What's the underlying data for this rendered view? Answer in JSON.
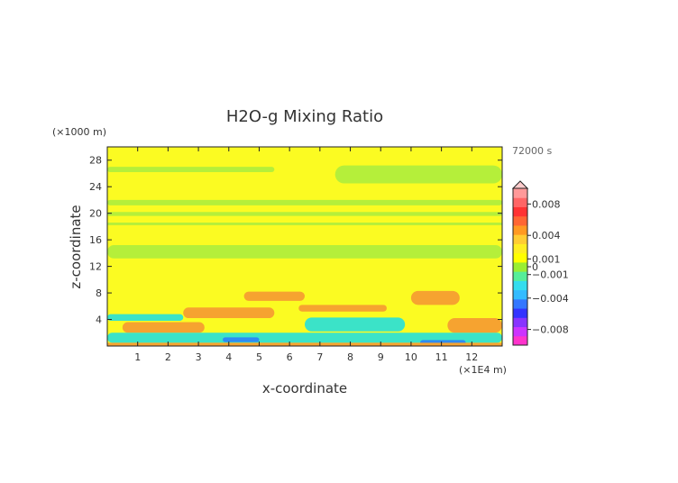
{
  "chart_data": {
    "type": "heatmap",
    "title": "H2O-g Mixing Ratio",
    "time_label": "72000 s",
    "xlabel": "x-coordinate",
    "ylabel": "z-coordinate",
    "x_unit": "(×1E4 m)",
    "y_unit": "(×1000 m)",
    "xlim": [
      0,
      13
    ],
    "ylim": [
      0,
      30
    ],
    "x_ticks": [
      "1",
      "2",
      "3",
      "4",
      "5",
      "6",
      "7",
      "8",
      "9",
      "10",
      "11",
      "12"
    ],
    "y_ticks": [
      "4",
      "8",
      "12",
      "16",
      "20",
      "24",
      "28"
    ],
    "colorbar": {
      "labels": [
        "0.008",
        "0.004",
        "0.001",
        "0",
        "−0.001",
        "−0.004",
        "−0.008"
      ],
      "label_values": [
        0.008,
        0.004,
        0.001,
        0,
        -0.001,
        -0.004,
        -0.008
      ],
      "range": [
        -0.01,
        0.01
      ],
      "colors": [
        "#ff33cc",
        "#cc33ff",
        "#8833ff",
        "#3333ff",
        "#3377ff",
        "#33bbff",
        "#33ddee",
        "#55ee99",
        "#99ee33",
        "#ffff00",
        "#ffee22",
        "#ffcc33",
        "#ff9922",
        "#ff6633",
        "#ff3333",
        "#ff6666",
        "#ff9999"
      ]
    },
    "colors": {
      "near_zero_negative": "#b5ef3a",
      "near_zero_positive": "#fbfb22",
      "small_positive": "#f6a330",
      "small_negative": "#3be3c8",
      "negative": "#2e8bf2"
    },
    "regions": [
      {
        "value": 0.0002,
        "x": [
          0.0,
          13.0
        ],
        "z": [
          27.0,
          29.8
        ]
      },
      {
        "value": -0.0002,
        "x": [
          0.0,
          5.5
        ],
        "z": [
          26.2,
          27.0
        ]
      },
      {
        "value": -0.0002,
        "x": [
          7.5,
          13.0
        ],
        "z": [
          24.5,
          27.2
        ]
      },
      {
        "value": 0.0002,
        "x": [
          0.0,
          13.0
        ],
        "z": [
          22.0,
          23.6
        ]
      },
      {
        "value": -0.0002,
        "x": [
          0.0,
          13.0
        ],
        "z": [
          21.2,
          22.0
        ]
      },
      {
        "value": -0.0002,
        "x": [
          0.0,
          13.0
        ],
        "z": [
          19.6,
          20.2
        ]
      },
      {
        "value": -0.0002,
        "x": [
          0.0,
          13.0
        ],
        "z": [
          18.2,
          18.6
        ]
      },
      {
        "value": 0.0002,
        "x": [
          0.0,
          13.0
        ],
        "z": [
          16.6,
          17.8
        ]
      },
      {
        "value": -0.0002,
        "x": [
          0.0,
          13.0
        ],
        "z": [
          13.2,
          15.2
        ]
      },
      {
        "value": 0.0002,
        "x": [
          1.0,
          6.0
        ],
        "z": [
          11.2,
          12.2
        ]
      },
      {
        "value": 0.0002,
        "x": [
          7.5,
          13.0
        ],
        "z": [
          9.0,
          11.5
        ]
      },
      {
        "value": 0.0005,
        "x": [
          4.5,
          6.5
        ],
        "z": [
          6.8,
          8.2
        ]
      },
      {
        "value": 0.0005,
        "x": [
          6.3,
          9.2
        ],
        "z": [
          5.2,
          6.2
        ]
      },
      {
        "value": 0.0005,
        "x": [
          10.0,
          11.6
        ],
        "z": [
          6.2,
          8.3
        ]
      },
      {
        "value": 0.0005,
        "x": [
          2.5,
          5.5
        ],
        "z": [
          4.2,
          5.8
        ]
      },
      {
        "value": 0.0005,
        "x": [
          0.5,
          3.2
        ],
        "z": [
          2.0,
          3.6
        ]
      },
      {
        "value": 0.0005,
        "x": [
          11.2,
          13.0
        ],
        "z": [
          2.0,
          4.2
        ]
      },
      {
        "value": -0.0005,
        "x": [
          0.0,
          13.0
        ],
        "z": [
          0.5,
          2.0
        ]
      },
      {
        "value": -0.0005,
        "x": [
          0.0,
          2.5
        ],
        "z": [
          3.8,
          4.8
        ]
      },
      {
        "value": -0.0005,
        "x": [
          6.5,
          9.8
        ],
        "z": [
          2.2,
          4.3
        ]
      },
      {
        "value": -0.003,
        "x": [
          3.8,
          5.0
        ],
        "z": [
          0.6,
          1.3
        ]
      },
      {
        "value": -0.003,
        "x": [
          10.3,
          11.8
        ],
        "z": [
          0.1,
          0.9
        ]
      },
      {
        "value": 0.0005,
        "x": [
          0.0,
          13.0
        ],
        "z": [
          0.0,
          0.5
        ]
      }
    ]
  }
}
